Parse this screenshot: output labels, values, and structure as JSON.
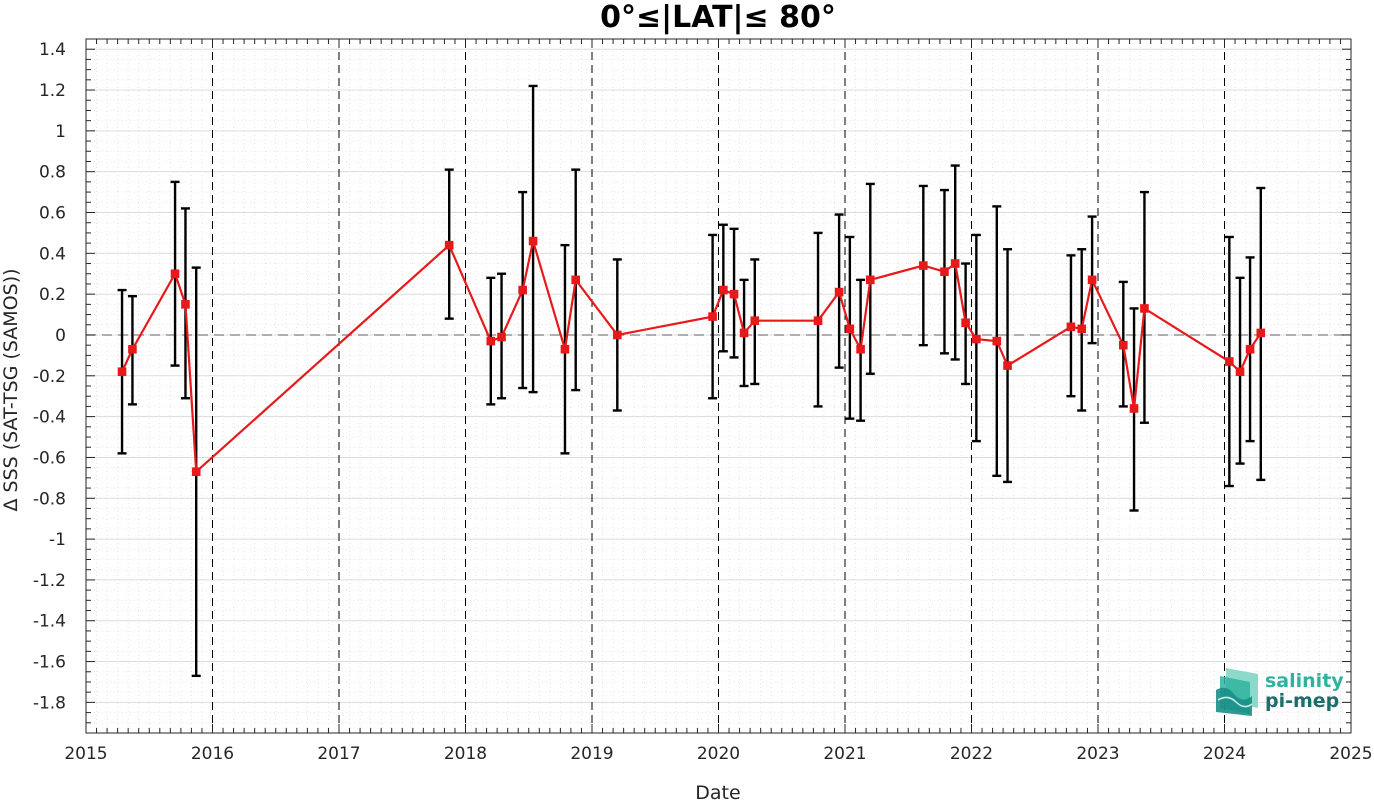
{
  "chart_data": {
    "type": "line",
    "title": "0°≤|LAT|≤ 80°",
    "xlabel": "Date",
    "ylabel": "Δ SSS (SAT-TSG (SAMOS))",
    "xlim": [
      "2015-01-01",
      "2025-01-01"
    ],
    "ylim": [
      -1.95,
      1.45
    ],
    "x_ticks": [
      "2015",
      "2016",
      "2017",
      "2018",
      "2019",
      "2020",
      "2021",
      "2022",
      "2023",
      "2024",
      "2025"
    ],
    "y_ticks": [
      "-1.8",
      "-1.6",
      "-1.4",
      "-1.2",
      "-1",
      "-0.8",
      "-0.6",
      "-0.4",
      "-0.2",
      "0",
      "0.2",
      "0.4",
      "0.6",
      "0.8",
      "1",
      "1.2",
      "1.4"
    ],
    "y_tick_values": [
      -1.8,
      -1.6,
      -1.4,
      -1.2,
      -1,
      -0.8,
      -0.6,
      -0.4,
      -0.2,
      0,
      0.2,
      0.4,
      0.6,
      0.8,
      1,
      1.2,
      1.4
    ],
    "grid": true,
    "reference_line_y": 0,
    "year_boundaries_dashed": true,
    "colors": {
      "series": "#e8191b",
      "error_bars": "#000000",
      "zero_line": "#808080",
      "grid": "#d9d9d9"
    },
    "series": [
      {
        "x": [
          "2015-04-15",
          "2015-05-15",
          "2015-09-15",
          "2015-10-15",
          "2015-11-15",
          "2017-11-15",
          "2018-03-15",
          "2018-04-15",
          "2018-06-15",
          "2018-07-15",
          "2018-10-15",
          "2018-11-15",
          "2019-03-15",
          "2019-12-15",
          "2020-01-15",
          "2020-02-15",
          "2020-03-15",
          "2020-04-15",
          "2020-10-15",
          "2020-12-15",
          "2021-01-15",
          "2021-02-15",
          "2021-03-15",
          "2021-08-15",
          "2021-10-15",
          "2021-11-15",
          "2021-12-15",
          "2022-01-15",
          "2022-03-15",
          "2022-04-15",
          "2022-10-15",
          "2022-11-15",
          "2022-12-15",
          "2023-03-15",
          "2023-04-15",
          "2023-05-15",
          "2024-01-15",
          "2024-02-15",
          "2024-03-15",
          "2024-04-15"
        ],
        "values": [
          -0.18,
          -0.07,
          0.3,
          0.15,
          -0.67,
          0.44,
          -0.03,
          -0.01,
          0.22,
          0.46,
          -0.07,
          0.27,
          0.0,
          0.09,
          0.22,
          0.2,
          0.01,
          0.07,
          0.07,
          0.21,
          0.03,
          -0.07,
          0.27,
          0.34,
          0.31,
          0.35,
          0.06,
          -0.02,
          -0.03,
          -0.15,
          0.04,
          0.03,
          0.27,
          -0.05,
          -0.36,
          0.13,
          -0.13,
          -0.18,
          -0.07,
          0.01
        ],
        "lower": [
          -0.58,
          -0.34,
          -0.15,
          -0.31,
          -1.67,
          0.08,
          -0.34,
          -0.31,
          -0.26,
          -0.28,
          -0.58,
          -0.27,
          -0.37,
          -0.31,
          -0.08,
          -0.11,
          -0.25,
          -0.24,
          -0.35,
          -0.16,
          -0.41,
          -0.42,
          -0.19,
          -0.05,
          -0.09,
          -0.12,
          -0.24,
          -0.52,
          -0.69,
          -0.72,
          -0.3,
          -0.37,
          -0.04,
          -0.35,
          -0.86,
          -0.43,
          -0.74,
          -0.63,
          -0.52,
          -0.71
        ],
        "upper": [
          0.22,
          0.19,
          0.75,
          0.62,
          0.33,
          0.81,
          0.28,
          0.3,
          0.7,
          1.22,
          0.44,
          0.81,
          0.37,
          0.49,
          0.54,
          0.52,
          0.27,
          0.37,
          0.5,
          0.59,
          0.48,
          0.27,
          0.74,
          0.73,
          0.71,
          0.83,
          0.35,
          0.49,
          0.63,
          0.42,
          0.39,
          0.42,
          0.58,
          0.26,
          0.13,
          0.7,
          0.48,
          0.28,
          0.38,
          0.72
        ]
      }
    ]
  },
  "logo": {
    "line1": "salinity",
    "line2": "pi-mep"
  }
}
